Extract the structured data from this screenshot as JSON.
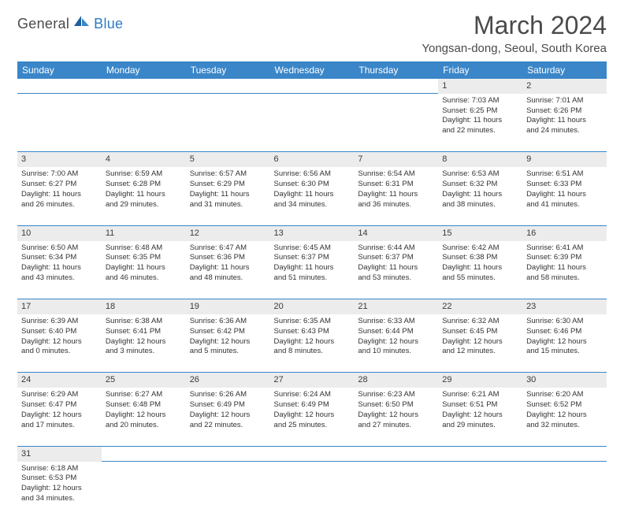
{
  "brand": {
    "part1": "General",
    "part2": "Blue"
  },
  "title": "March 2024",
  "location": "Yongsan-dong, Seoul, South Korea",
  "colors": {
    "header_bg": "#3a86c8",
    "header_text": "#ffffff",
    "daynum_bg": "#ececec",
    "rule": "#3a86c8",
    "text": "#333333",
    "brand_blue": "#2d7bc4",
    "page_bg": "#ffffff"
  },
  "typography": {
    "title_fontsize": 32,
    "location_fontsize": 15,
    "dayhead_fontsize": 12,
    "daynum_fontsize": 11,
    "cell_fontsize": 9.5
  },
  "days_of_week": [
    "Sunday",
    "Monday",
    "Tuesday",
    "Wednesday",
    "Thursday",
    "Friday",
    "Saturday"
  ],
  "weeks": [
    [
      null,
      null,
      null,
      null,
      null,
      {
        "n": "1",
        "sr": "Sunrise: 7:03 AM",
        "ss": "Sunset: 6:25 PM",
        "dl1": "Daylight: 11 hours",
        "dl2": "and 22 minutes."
      },
      {
        "n": "2",
        "sr": "Sunrise: 7:01 AM",
        "ss": "Sunset: 6:26 PM",
        "dl1": "Daylight: 11 hours",
        "dl2": "and 24 minutes."
      }
    ],
    [
      {
        "n": "3",
        "sr": "Sunrise: 7:00 AM",
        "ss": "Sunset: 6:27 PM",
        "dl1": "Daylight: 11 hours",
        "dl2": "and 26 minutes."
      },
      {
        "n": "4",
        "sr": "Sunrise: 6:59 AM",
        "ss": "Sunset: 6:28 PM",
        "dl1": "Daylight: 11 hours",
        "dl2": "and 29 minutes."
      },
      {
        "n": "5",
        "sr": "Sunrise: 6:57 AM",
        "ss": "Sunset: 6:29 PM",
        "dl1": "Daylight: 11 hours",
        "dl2": "and 31 minutes."
      },
      {
        "n": "6",
        "sr": "Sunrise: 6:56 AM",
        "ss": "Sunset: 6:30 PM",
        "dl1": "Daylight: 11 hours",
        "dl2": "and 34 minutes."
      },
      {
        "n": "7",
        "sr": "Sunrise: 6:54 AM",
        "ss": "Sunset: 6:31 PM",
        "dl1": "Daylight: 11 hours",
        "dl2": "and 36 minutes."
      },
      {
        "n": "8",
        "sr": "Sunrise: 6:53 AM",
        "ss": "Sunset: 6:32 PM",
        "dl1": "Daylight: 11 hours",
        "dl2": "and 38 minutes."
      },
      {
        "n": "9",
        "sr": "Sunrise: 6:51 AM",
        "ss": "Sunset: 6:33 PM",
        "dl1": "Daylight: 11 hours",
        "dl2": "and 41 minutes."
      }
    ],
    [
      {
        "n": "10",
        "sr": "Sunrise: 6:50 AM",
        "ss": "Sunset: 6:34 PM",
        "dl1": "Daylight: 11 hours",
        "dl2": "and 43 minutes."
      },
      {
        "n": "11",
        "sr": "Sunrise: 6:48 AM",
        "ss": "Sunset: 6:35 PM",
        "dl1": "Daylight: 11 hours",
        "dl2": "and 46 minutes."
      },
      {
        "n": "12",
        "sr": "Sunrise: 6:47 AM",
        "ss": "Sunset: 6:36 PM",
        "dl1": "Daylight: 11 hours",
        "dl2": "and 48 minutes."
      },
      {
        "n": "13",
        "sr": "Sunrise: 6:45 AM",
        "ss": "Sunset: 6:37 PM",
        "dl1": "Daylight: 11 hours",
        "dl2": "and 51 minutes."
      },
      {
        "n": "14",
        "sr": "Sunrise: 6:44 AM",
        "ss": "Sunset: 6:37 PM",
        "dl1": "Daylight: 11 hours",
        "dl2": "and 53 minutes."
      },
      {
        "n": "15",
        "sr": "Sunrise: 6:42 AM",
        "ss": "Sunset: 6:38 PM",
        "dl1": "Daylight: 11 hours",
        "dl2": "and 55 minutes."
      },
      {
        "n": "16",
        "sr": "Sunrise: 6:41 AM",
        "ss": "Sunset: 6:39 PM",
        "dl1": "Daylight: 11 hours",
        "dl2": "and 58 minutes."
      }
    ],
    [
      {
        "n": "17",
        "sr": "Sunrise: 6:39 AM",
        "ss": "Sunset: 6:40 PM",
        "dl1": "Daylight: 12 hours",
        "dl2": "and 0 minutes."
      },
      {
        "n": "18",
        "sr": "Sunrise: 6:38 AM",
        "ss": "Sunset: 6:41 PM",
        "dl1": "Daylight: 12 hours",
        "dl2": "and 3 minutes."
      },
      {
        "n": "19",
        "sr": "Sunrise: 6:36 AM",
        "ss": "Sunset: 6:42 PM",
        "dl1": "Daylight: 12 hours",
        "dl2": "and 5 minutes."
      },
      {
        "n": "20",
        "sr": "Sunrise: 6:35 AM",
        "ss": "Sunset: 6:43 PM",
        "dl1": "Daylight: 12 hours",
        "dl2": "and 8 minutes."
      },
      {
        "n": "21",
        "sr": "Sunrise: 6:33 AM",
        "ss": "Sunset: 6:44 PM",
        "dl1": "Daylight: 12 hours",
        "dl2": "and 10 minutes."
      },
      {
        "n": "22",
        "sr": "Sunrise: 6:32 AM",
        "ss": "Sunset: 6:45 PM",
        "dl1": "Daylight: 12 hours",
        "dl2": "and 12 minutes."
      },
      {
        "n": "23",
        "sr": "Sunrise: 6:30 AM",
        "ss": "Sunset: 6:46 PM",
        "dl1": "Daylight: 12 hours",
        "dl2": "and 15 minutes."
      }
    ],
    [
      {
        "n": "24",
        "sr": "Sunrise: 6:29 AM",
        "ss": "Sunset: 6:47 PM",
        "dl1": "Daylight: 12 hours",
        "dl2": "and 17 minutes."
      },
      {
        "n": "25",
        "sr": "Sunrise: 6:27 AM",
        "ss": "Sunset: 6:48 PM",
        "dl1": "Daylight: 12 hours",
        "dl2": "and 20 minutes."
      },
      {
        "n": "26",
        "sr": "Sunrise: 6:26 AM",
        "ss": "Sunset: 6:49 PM",
        "dl1": "Daylight: 12 hours",
        "dl2": "and 22 minutes."
      },
      {
        "n": "27",
        "sr": "Sunrise: 6:24 AM",
        "ss": "Sunset: 6:49 PM",
        "dl1": "Daylight: 12 hours",
        "dl2": "and 25 minutes."
      },
      {
        "n": "28",
        "sr": "Sunrise: 6:23 AM",
        "ss": "Sunset: 6:50 PM",
        "dl1": "Daylight: 12 hours",
        "dl2": "and 27 minutes."
      },
      {
        "n": "29",
        "sr": "Sunrise: 6:21 AM",
        "ss": "Sunset: 6:51 PM",
        "dl1": "Daylight: 12 hours",
        "dl2": "and 29 minutes."
      },
      {
        "n": "30",
        "sr": "Sunrise: 6:20 AM",
        "ss": "Sunset: 6:52 PM",
        "dl1": "Daylight: 12 hours",
        "dl2": "and 32 minutes."
      }
    ],
    [
      {
        "n": "31",
        "sr": "Sunrise: 6:18 AM",
        "ss": "Sunset: 6:53 PM",
        "dl1": "Daylight: 12 hours",
        "dl2": "and 34 minutes."
      },
      null,
      null,
      null,
      null,
      null,
      null
    ]
  ]
}
